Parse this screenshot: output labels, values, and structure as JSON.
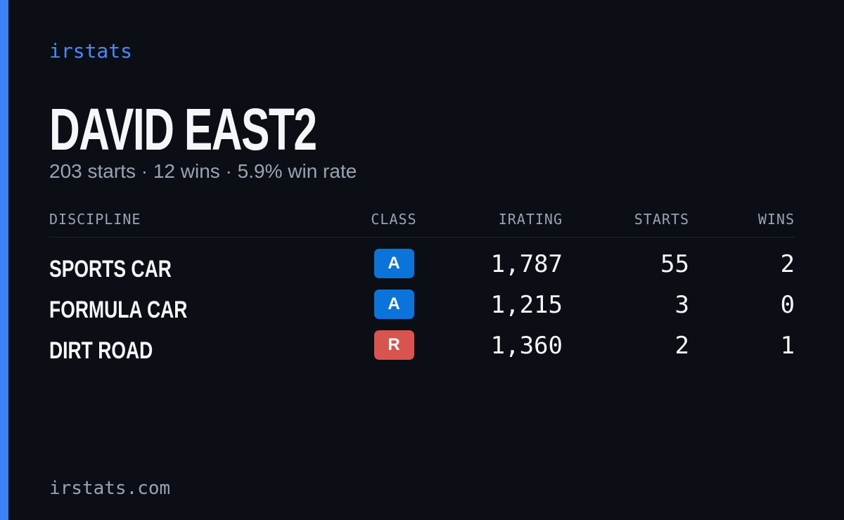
{
  "brand": "irstats",
  "driver": {
    "name": "DAVID EAST2",
    "summary": "203 starts · 12 wins · 5.9% win rate"
  },
  "table": {
    "headers": [
      "DISCIPLINE",
      "CLASS",
      "IRATING",
      "STARTS",
      "WINS"
    ],
    "rows": [
      {
        "discipline": "SPORTS CAR",
        "class": "A",
        "class_color": "#0b74da",
        "irating": "1,787",
        "starts": "55",
        "wins": "2"
      },
      {
        "discipline": "FORMULA CAR",
        "class": "A",
        "class_color": "#0b74da",
        "irating": "1,215",
        "starts": "3",
        "wins": "0"
      },
      {
        "discipline": "DIRT ROAD",
        "class": "R",
        "class_color": "#d9534f",
        "irating": "1,360",
        "starts": "2",
        "wins": "1"
      }
    ]
  },
  "footer": "irstats.com"
}
